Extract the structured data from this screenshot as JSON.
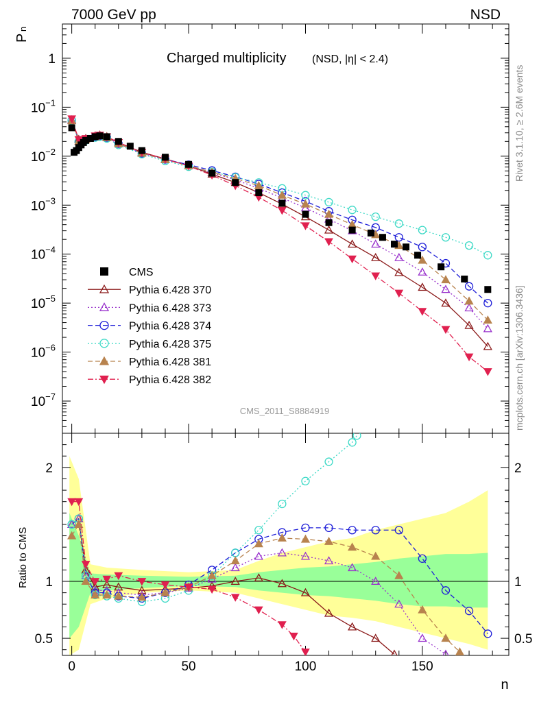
{
  "header": {
    "left": "7000 GeV pp",
    "right": "NSD"
  },
  "chart_data": {
    "type": "scatter",
    "title": "Charged multiplicity",
    "title_sub": "(NSD, |η| < 2.4)",
    "xlabel": "n",
    "ylabel": "P",
    "ylabel_sub": "n",
    "ratio_ylabel": "Ratio to CMS",
    "analysis_label": "CMS_2011_S8884919",
    "side_label_top": "Rivet 3.1.10, ≥ 2.6M events",
    "side_label_bottom": "mcplots.cern.ch [arXiv:1306.3436]",
    "xlim": [
      -4,
      187
    ],
    "main_ylim": [
      2.2e-08,
      5
    ],
    "yscale": "log",
    "main_ytick_labels": [
      "1",
      "10^-1",
      "10^-2",
      "10^-3",
      "10^-4",
      "10^-5",
      "10^-6",
      "10^-7"
    ],
    "ratio_ylim": [
      0.35,
      2.3
    ],
    "ratio_yticks": [
      0.5,
      1,
      2
    ],
    "xticks": [
      0,
      50,
      100,
      150
    ],
    "legend_position": "lower-left",
    "series": [
      {
        "name": "CMS",
        "color": "#000000",
        "marker": "square",
        "line": "none"
      },
      {
        "name": "Pythia 6.428 370",
        "color": "#8b1a1a",
        "marker": "triangle-open",
        "line": "solid"
      },
      {
        "name": "Pythia 6.428 373",
        "color": "#9932cc",
        "marker": "triangle-open",
        "line": "dotted"
      },
      {
        "name": "Pythia 6.428 374",
        "color": "#1e1ed8",
        "marker": "circle-open",
        "line": "dashed"
      },
      {
        "name": "Pythia 6.428 375",
        "color": "#3cd9c6",
        "marker": "circle-open",
        "line": "dotted"
      },
      {
        "name": "Pythia 6.428 381",
        "color": "#b8834e",
        "marker": "triangle-filled",
        "line": "dashed"
      },
      {
        "name": "Pythia 6.428 382",
        "color": "#e0204f",
        "marker": "triangle-down-filled",
        "line": "dashdot"
      }
    ],
    "cms_points": {
      "x": [
        0,
        1,
        2,
        3,
        4,
        5,
        6,
        8,
        10,
        12,
        15,
        20,
        25,
        30,
        40,
        50,
        60,
        70,
        80,
        90,
        100,
        110,
        120,
        128,
        133,
        138,
        143,
        148,
        158,
        168,
        178
      ],
      "y": [
        0.038,
        0.012,
        0.013,
        0.015,
        0.017,
        0.019,
        0.021,
        0.023,
        0.025,
        0.026,
        0.025,
        0.02,
        0.016,
        0.013,
        0.0095,
        0.0068,
        0.0045,
        0.0029,
        0.0018,
        0.0011,
        0.00065,
        0.00044,
        0.00031,
        0.00027,
        0.00022,
        0.00016,
        0.00014,
        9.5e-05,
        5.5e-05,
        3.1e-05,
        1.9e-05
      ]
    },
    "model_curves": [
      {
        "name": "Pythia 6.428 370",
        "x": [
          0,
          3,
          6,
          10,
          12,
          15,
          20,
          30,
          40,
          50,
          60,
          70,
          80,
          90,
          100,
          110,
          120,
          130,
          140,
          150,
          160,
          170,
          178
        ],
        "y": [
          0.055,
          0.022,
          0.023,
          0.026,
          0.027,
          0.025,
          0.019,
          0.012,
          0.0088,
          0.0064,
          0.0043,
          0.0029,
          0.0018,
          0.00105,
          0.00058,
          0.00031,
          0.00016,
          8.5e-05,
          4.2e-05,
          2.1e-05,
          1e-05,
          3.5e-06,
          1.3e-06
        ]
      },
      {
        "name": "Pythia 6.428 373",
        "x": [
          0,
          3,
          6,
          10,
          12,
          15,
          20,
          30,
          40,
          50,
          60,
          70,
          80,
          90,
          100,
          110,
          120,
          130,
          140,
          150,
          160,
          170,
          178
        ],
        "y": [
          0.055,
          0.02,
          0.022,
          0.025,
          0.026,
          0.024,
          0.018,
          0.0115,
          0.0085,
          0.0064,
          0.0046,
          0.0033,
          0.0022,
          0.0014,
          0.00088,
          0.00052,
          0.0003,
          0.00016,
          8.5e-05,
          4.3e-05,
          1.9e-05,
          8e-06,
          3e-06
        ]
      },
      {
        "name": "Pythia 6.428 374",
        "x": [
          0,
          3,
          6,
          10,
          12,
          15,
          20,
          30,
          40,
          50,
          60,
          70,
          80,
          90,
          100,
          110,
          120,
          130,
          140,
          150,
          160,
          170,
          178
        ],
        "y": [
          0.054,
          0.02,
          0.022,
          0.025,
          0.026,
          0.024,
          0.018,
          0.0114,
          0.0086,
          0.0067,
          0.0051,
          0.0038,
          0.0027,
          0.0018,
          0.0012,
          0.00075,
          0.0005,
          0.00035,
          0.00022,
          0.00014,
          6.5e-05,
          2.2e-05,
          1e-05
        ]
      },
      {
        "name": "Pythia 6.428 375",
        "x": [
          0,
          3,
          6,
          10,
          12,
          15,
          20,
          30,
          40,
          50,
          60,
          70,
          80,
          90,
          100,
          110,
          120,
          130,
          140,
          150,
          160,
          170,
          178
        ],
        "y": [
          0.054,
          0.02,
          0.021,
          0.024,
          0.025,
          0.023,
          0.017,
          0.011,
          0.008,
          0.0061,
          0.0048,
          0.0037,
          0.0029,
          0.0022,
          0.0016,
          0.00115,
          0.0008,
          0.00058,
          0.00042,
          0.00031,
          0.00022,
          0.00015,
          9.5e-05
        ]
      },
      {
        "name": "Pythia 6.428 381",
        "x": [
          0,
          3,
          6,
          10,
          12,
          15,
          20,
          30,
          40,
          50,
          60,
          70,
          80,
          90,
          100,
          110,
          120,
          130,
          140,
          150,
          160,
          170,
          178
        ],
        "y": [
          0.053,
          0.02,
          0.022,
          0.025,
          0.026,
          0.024,
          0.018,
          0.0115,
          0.0085,
          0.0064,
          0.0047,
          0.0035,
          0.0025,
          0.0016,
          0.00105,
          0.00065,
          0.0004,
          0.00025,
          0.00015,
          7.5e-05,
          3e-05,
          1.1e-05,
          4.5e-06
        ]
      },
      {
        "name": "Pythia 6.428 382",
        "x": [
          0,
          3,
          6,
          10,
          12,
          15,
          20,
          30,
          40,
          50,
          60,
          70,
          80,
          90,
          100,
          110,
          120,
          130,
          140,
          150,
          160,
          170,
          178
        ],
        "y": [
          0.058,
          0.022,
          0.023,
          0.026,
          0.027,
          0.025,
          0.019,
          0.012,
          0.0088,
          0.0063,
          0.0041,
          0.0025,
          0.00145,
          0.00078,
          0.00038,
          0.00018,
          8e-05,
          3.6e-05,
          1.6e-05,
          6.8e-06,
          2.9e-06,
          8e-07,
          4e-07
        ]
      }
    ],
    "ratio_curves": [
      {
        "name": "Pythia 6.428 370",
        "x": [
          0,
          3,
          6,
          10,
          15,
          20,
          30,
          40,
          50,
          60,
          70,
          80,
          90,
          100,
          110,
          120,
          130,
          138
        ],
        "y": [
          1.5,
          1.55,
          1.1,
          0.95,
          0.97,
          0.95,
          0.92,
          0.93,
          0.94,
          0.96,
          1.0,
          1.03,
          0.98,
          0.9,
          0.72,
          0.6,
          0.5,
          0.36
        ]
      },
      {
        "name": "Pythia 6.428 373",
        "x": [
          0,
          3,
          6,
          10,
          15,
          20,
          30,
          40,
          50,
          60,
          70,
          80,
          90,
          100,
          110,
          120,
          130,
          140,
          150,
          160
        ],
        "y": [
          1.5,
          1.55,
          1.05,
          0.92,
          0.92,
          0.9,
          0.88,
          0.9,
          0.94,
          1.02,
          1.12,
          1.22,
          1.25,
          1.22,
          1.18,
          1.12,
          1.0,
          0.8,
          0.5,
          0.36
        ]
      },
      {
        "name": "Pythia 6.428 374",
        "x": [
          0,
          3,
          6,
          10,
          15,
          20,
          30,
          40,
          50,
          60,
          70,
          80,
          90,
          100,
          110,
          120,
          130,
          140,
          150,
          160,
          170,
          178
        ],
        "y": [
          1.5,
          1.55,
          1.05,
          0.9,
          0.9,
          0.87,
          0.85,
          0.9,
          0.97,
          1.1,
          1.25,
          1.37,
          1.43,
          1.47,
          1.47,
          1.45,
          1.45,
          1.45,
          1.2,
          0.92,
          0.74,
          0.54
        ]
      },
      {
        "name": "Pythia 6.428 375",
        "x": [
          0,
          3,
          6,
          10,
          15,
          20,
          30,
          40,
          50,
          60,
          70,
          80,
          90,
          100,
          110,
          120,
          122
        ],
        "y": [
          1.5,
          1.55,
          1.05,
          0.88,
          0.87,
          0.85,
          0.82,
          0.85,
          0.92,
          1.05,
          1.25,
          1.45,
          1.68,
          1.88,
          2.05,
          2.22,
          2.28
        ]
      },
      {
        "name": "Pythia 6.428 381",
        "x": [
          0,
          3,
          6,
          10,
          15,
          20,
          30,
          40,
          50,
          60,
          70,
          80,
          90,
          100,
          110,
          120,
          130,
          140,
          150,
          160,
          166
        ],
        "y": [
          1.4,
          1.5,
          1.0,
          0.88,
          0.88,
          0.87,
          0.86,
          0.9,
          0.95,
          1.05,
          1.18,
          1.33,
          1.38,
          1.37,
          1.35,
          1.3,
          1.22,
          1.05,
          0.75,
          0.5,
          0.38
        ]
      },
      {
        "name": "Pythia 6.428 382",
        "x": [
          0,
          3,
          6,
          10,
          15,
          20,
          30,
          40,
          50,
          60,
          70,
          80,
          90,
          95,
          100
        ],
        "y": [
          1.7,
          1.7,
          1.15,
          1.0,
          1.02,
          1.05,
          1.0,
          0.97,
          0.95,
          0.93,
          0.86,
          0.75,
          0.62,
          0.52,
          0.38
        ]
      }
    ],
    "ratio_band_yellow": {
      "x": [
        -1,
        3,
        8,
        15,
        30,
        50,
        70,
        80,
        90,
        100,
        110,
        120,
        130,
        140,
        150,
        160,
        170,
        178
      ],
      "lo": [
        0.35,
        0.4,
        0.8,
        0.85,
        0.9,
        0.92,
        0.9,
        0.85,
        0.8,
        0.75,
        0.7,
        0.68,
        0.65,
        0.6,
        0.55,
        0.5,
        0.45,
        0.4
      ],
      "hi": [
        2.1,
        1.9,
        1.15,
        1.12,
        1.1,
        1.08,
        1.1,
        1.18,
        1.25,
        1.3,
        1.35,
        1.38,
        1.45,
        1.5,
        1.55,
        1.6,
        1.7,
        1.8
      ]
    },
    "ratio_band_green": {
      "x": [
        -1,
        3,
        8,
        15,
        30,
        50,
        70,
        80,
        90,
        100,
        110,
        120,
        130,
        140,
        150,
        160,
        170,
        178
      ],
      "lo": [
        0.5,
        0.6,
        0.9,
        0.92,
        0.94,
        0.96,
        0.95,
        0.92,
        0.9,
        0.88,
        0.87,
        0.85,
        0.83,
        0.8,
        0.78,
        0.78,
        0.77,
        0.77
      ],
      "hi": [
        1.6,
        1.4,
        1.07,
        1.06,
        1.05,
        1.04,
        1.05,
        1.08,
        1.1,
        1.12,
        1.13,
        1.15,
        1.17,
        1.2,
        1.22,
        1.24,
        1.24,
        1.25
      ]
    }
  }
}
